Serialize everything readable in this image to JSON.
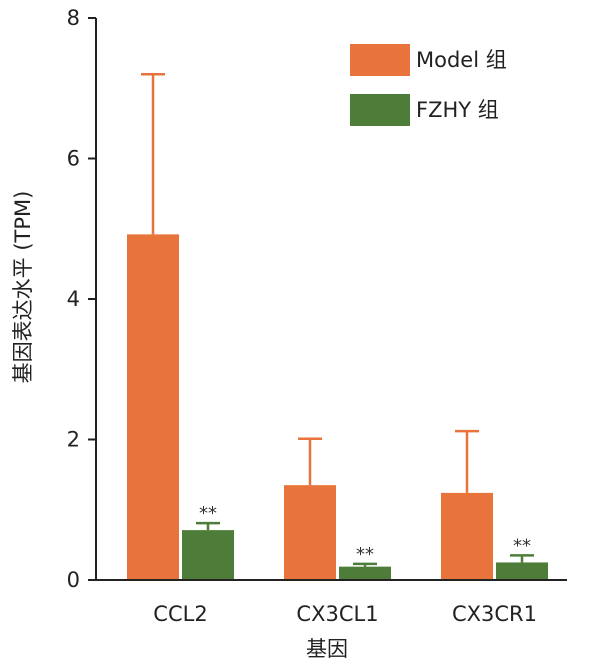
{
  "chart_data": {
    "type": "bar",
    "ylabel": "基因表达水平 (TPM)",
    "xlabel": "基因",
    "ylim": [
      0,
      8
    ],
    "yticks": [
      0,
      2,
      4,
      6,
      8
    ],
    "categories": [
      "CCL2",
      "CX3CL1",
      "CX3CR1"
    ],
    "series": [
      {
        "name": "Model 组",
        "color": "#e8743b",
        "values": [
          4.92,
          1.35,
          1.24
        ],
        "error": [
          2.28,
          0.66,
          0.88
        ]
      },
      {
        "name": "FZHY 组",
        "color": "#4e7d3a",
        "values": [
          0.71,
          0.19,
          0.25
        ],
        "error": [
          0.1,
          0.04,
          0.1
        ],
        "annotations": [
          "**",
          "**",
          "**"
        ]
      }
    ],
    "legend_position": "top-right",
    "grid": false
  }
}
